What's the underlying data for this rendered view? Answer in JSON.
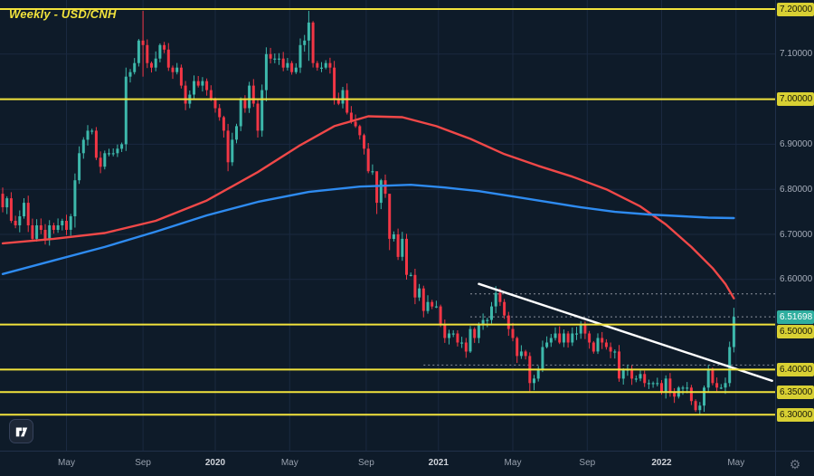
{
  "chart_data": {
    "type": "candlestick",
    "title": "Weekly - USD/CNH",
    "timeframe": "Weekly",
    "pair": "USD/CNH",
    "last_price": 6.51698,
    "first_open": 6.79,
    "colors": {
      "bg": "#0e1b29",
      "grid": "#1a2940",
      "up": "#3db8ab",
      "down": "#f23645",
      "dotted": "#8b919c",
      "levels": "#f2e33c",
      "trendline": "#ffffff",
      "ma_red": "#f04848",
      "ma_blue": "#2e8bf0"
    },
    "y_axis": {
      "min": 6.22,
      "max": 7.22,
      "grid": [
        7.2,
        7.1,
        7.0,
        6.9,
        6.8,
        6.7,
        6.6,
        6.5,
        6.4,
        6.3
      ],
      "ticks": [
        {
          "label": "7.20000",
          "price": 7.2,
          "style": "level"
        },
        {
          "label": "7.10000",
          "price": 7.1,
          "style": "plain"
        },
        {
          "label": "7.00000",
          "price": 7.0,
          "style": "level"
        },
        {
          "label": "6.90000",
          "price": 6.9,
          "style": "plain"
        },
        {
          "label": "6.80000",
          "price": 6.8,
          "style": "plain"
        },
        {
          "label": "6.70000",
          "price": 6.7,
          "style": "plain"
        },
        {
          "label": "6.60000",
          "price": 6.6,
          "style": "plain"
        },
        {
          "label": "6.51698",
          "price": 6.51698,
          "style": "last"
        },
        {
          "label": "6.50000",
          "price": 6.5,
          "style": "level"
        },
        {
          "label": "6.40000",
          "price": 6.4,
          "style": "level"
        },
        {
          "label": "6.35000",
          "price": 6.35,
          "style": "level"
        },
        {
          "label": "6.30000",
          "price": 6.3,
          "style": "level"
        }
      ]
    },
    "x_axis_labels": [
      {
        "label": "May",
        "week": 15
      },
      {
        "label": "Sep",
        "week": 33
      },
      {
        "label": "2020",
        "week": 50
      },
      {
        "label": "May",
        "week": 67.5
      },
      {
        "label": "Sep",
        "week": 85.5
      },
      {
        "label": "2021",
        "week": 102.5
      },
      {
        "label": "May",
        "week": 120
      },
      {
        "label": "Sep",
        "week": 137.5
      },
      {
        "label": "2022",
        "week": 155
      },
      {
        "label": "May",
        "week": 172.5
      }
    ],
    "weekly_closes": [
      6.76,
      6.78,
      6.73,
      6.72,
      6.74,
      6.77,
      6.72,
      6.69,
      6.72,
      6.71,
      6.69,
      6.72,
      6.71,
      6.72,
      6.73,
      6.71,
      6.74,
      6.82,
      6.88,
      6.91,
      6.93,
      6.93,
      6.87,
      6.85,
      6.88,
      6.88,
      6.88,
      6.89,
      6.9,
      7.05,
      7.06,
      7.08,
      7.13,
      7.12,
      7.08,
      7.07,
      7.09,
      7.12,
      7.11,
      7.07,
      7.06,
      7.07,
      7.03,
      6.99,
      7.01,
      7.04,
      7.03,
      7.04,
      7.02,
      7.0,
      6.98,
      6.96,
      6.93,
      6.86,
      6.91,
      6.94,
      7.0,
      6.98,
      7.03,
      6.99,
      6.93,
      7.02,
      7.1,
      7.09,
      7.09,
      7.09,
      7.07,
      7.08,
      7.06,
      7.07,
      7.12,
      7.13,
      7.17,
      7.08,
      7.07,
      7.07,
      7.08,
      7.07,
      7.0,
      6.99,
      7.02,
      6.97,
      6.95,
      6.94,
      6.92,
      6.89,
      6.84,
      6.84,
      6.77,
      6.82,
      6.79,
      6.69,
      6.7,
      6.65,
      6.69,
      6.61,
      6.61,
      6.56,
      6.58,
      6.53,
      6.55,
      6.54,
      6.54,
      6.5,
      6.47,
      6.48,
      6.48,
      6.46,
      6.46,
      6.44,
      6.49,
      6.47,
      6.5,
      6.51,
      6.51,
      6.54,
      6.57,
      6.55,
      6.52,
      6.49,
      6.47,
      6.43,
      6.44,
      6.43,
      6.37,
      6.38,
      6.4,
      6.45,
      6.46,
      6.47,
      6.48,
      6.46,
      6.48,
      6.46,
      6.48,
      6.48,
      6.5,
      6.48,
      6.46,
      6.44,
      6.47,
      6.46,
      6.45,
      6.44,
      6.44,
      6.38,
      6.4,
      6.4,
      6.38,
      6.38,
      6.39,
      6.37,
      6.37,
      6.37,
      6.37,
      6.35,
      6.38,
      6.35,
      6.34,
      6.36,
      6.36,
      6.36,
      6.33,
      6.31,
      6.32,
      6.36,
      6.4,
      6.37,
      6.36,
      6.36,
      6.37,
      6.45,
      6.517
    ],
    "wick_overrides": {
      "17": [
        6.835,
        6.715
      ],
      "29": [
        7.07,
        6.885
      ],
      "33": [
        7.196,
        7.05
      ],
      "53": [
        6.945,
        6.84
      ],
      "62": [
        7.115,
        6.995
      ],
      "72": [
        7.196,
        7.085
      ],
      "88": [
        6.835,
        6.745
      ],
      "91": [
        6.755,
        6.665
      ],
      "116": [
        6.585,
        6.525
      ],
      "124": [
        6.438,
        6.352
      ],
      "163": [
        6.334,
        6.306
      ],
      "166": [
        6.41,
        6.35
      ],
      "171": [
        6.462,
        6.362
      ],
      "172": [
        6.537,
        6.438
      ]
    },
    "series": [
      {
        "name": "red-moving-average",
        "color": "#f04848",
        "points": [
          [
            0,
            6.68
          ],
          [
            12,
            6.69
          ],
          [
            24,
            6.703
          ],
          [
            36,
            6.73
          ],
          [
            48,
            6.775
          ],
          [
            60,
            6.838
          ],
          [
            70,
            6.898
          ],
          [
            78,
            6.94
          ],
          [
            86,
            6.962
          ],
          [
            94,
            6.96
          ],
          [
            102,
            6.94
          ],
          [
            110,
            6.912
          ],
          [
            118,
            6.878
          ],
          [
            126,
            6.852
          ],
          [
            134,
            6.828
          ],
          [
            142,
            6.8
          ],
          [
            150,
            6.762
          ],
          [
            156,
            6.722
          ],
          [
            162,
            6.672
          ],
          [
            167,
            6.625
          ],
          [
            170,
            6.59
          ],
          [
            172,
            6.558
          ]
        ]
      },
      {
        "name": "blue-moving-average",
        "color": "#2e8bf0",
        "points": [
          [
            0,
            6.612
          ],
          [
            12,
            6.642
          ],
          [
            24,
            6.672
          ],
          [
            36,
            6.706
          ],
          [
            48,
            6.742
          ],
          [
            60,
            6.772
          ],
          [
            72,
            6.794
          ],
          [
            84,
            6.806
          ],
          [
            96,
            6.81
          ],
          [
            104,
            6.804
          ],
          [
            112,
            6.796
          ],
          [
            120,
            6.784
          ],
          [
            128,
            6.772
          ],
          [
            136,
            6.76
          ],
          [
            144,
            6.75
          ],
          [
            152,
            6.744
          ],
          [
            160,
            6.74
          ],
          [
            166,
            6.737
          ],
          [
            172,
            6.736
          ]
        ]
      }
    ],
    "horizontal_levels": {
      "color": "#f2e33c",
      "prices": [
        7.2,
        7.0,
        6.5,
        6.4,
        6.35,
        6.3
      ]
    },
    "dotted_levels": [
      {
        "price": 6.568,
        "from_week": 110
      },
      {
        "price": 6.41,
        "from_week": 99
      }
    ],
    "price_line": {
      "price": 6.51698,
      "from_week": 110
    },
    "trendline": {
      "color": "#ffffff",
      "from": [
        112,
        6.59
      ],
      "to": [
        181,
        6.375
      ]
    }
  },
  "corner": {
    "gear_icon": "⚙"
  }
}
